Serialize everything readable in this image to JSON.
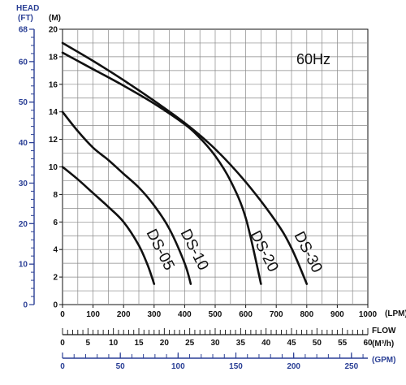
{
  "chart_data": {
    "type": "line",
    "frequency_label": "60Hz",
    "left_axis": {
      "title": "HEAD",
      "unit": "(FT)",
      "ticks": [
        0,
        10,
        20,
        30,
        40,
        50,
        60,
        68
      ],
      "color": "#2a3f95"
    },
    "y_axis": {
      "unit": "(M)",
      "ticks": [
        0,
        2,
        4,
        6,
        8,
        10,
        12,
        14,
        16,
        18,
        20
      ],
      "ylim": [
        0,
        20
      ]
    },
    "x_axis": {
      "unit": "(LPM)",
      "ticks": [
        0,
        100,
        200,
        300,
        400,
        500,
        600,
        700,
        800,
        900,
        1000
      ],
      "xlim": [
        0,
        1000
      ]
    },
    "flow_axis": {
      "title": "FLOW",
      "unit": "(M³/h)",
      "ticks": [
        0,
        5,
        10,
        15,
        20,
        25,
        30,
        35,
        40,
        45,
        50,
        55,
        60
      ]
    },
    "gpm_axis": {
      "unit": "(GPM)",
      "ticks": [
        0,
        50,
        100,
        150,
        200,
        250
      ],
      "color": "#2a3f95"
    },
    "series": [
      {
        "name": "DS-05",
        "x": [
          0,
          50,
          100,
          150,
          200,
          250,
          280,
          300
        ],
        "y": [
          10,
          9.1,
          8.1,
          7.1,
          6.0,
          4.3,
          2.8,
          1.5
        ]
      },
      {
        "name": "DS-10",
        "x": [
          0,
          50,
          100,
          150,
          200,
          250,
          300,
          350,
          400,
          420
        ],
        "y": [
          14,
          12.6,
          11.4,
          10.5,
          9.5,
          8.5,
          7.2,
          5.5,
          3.0,
          1.5
        ]
      },
      {
        "name": "DS-20",
        "x": [
          0,
          50,
          100,
          200,
          300,
          400,
          450,
          500,
          550,
          600,
          650
        ],
        "y": [
          18.3,
          17.7,
          17.1,
          15.9,
          14.6,
          13.1,
          12.1,
          10.8,
          9.0,
          6.3,
          1.5
        ]
      },
      {
        "name": "DS-30",
        "x": [
          0,
          100,
          200,
          300,
          400,
          500,
          600,
          700,
          750,
          800
        ],
        "y": [
          19,
          17.7,
          16.3,
          14.8,
          13.2,
          11.3,
          8.9,
          6.0,
          4.1,
          1.5
        ]
      }
    ]
  }
}
